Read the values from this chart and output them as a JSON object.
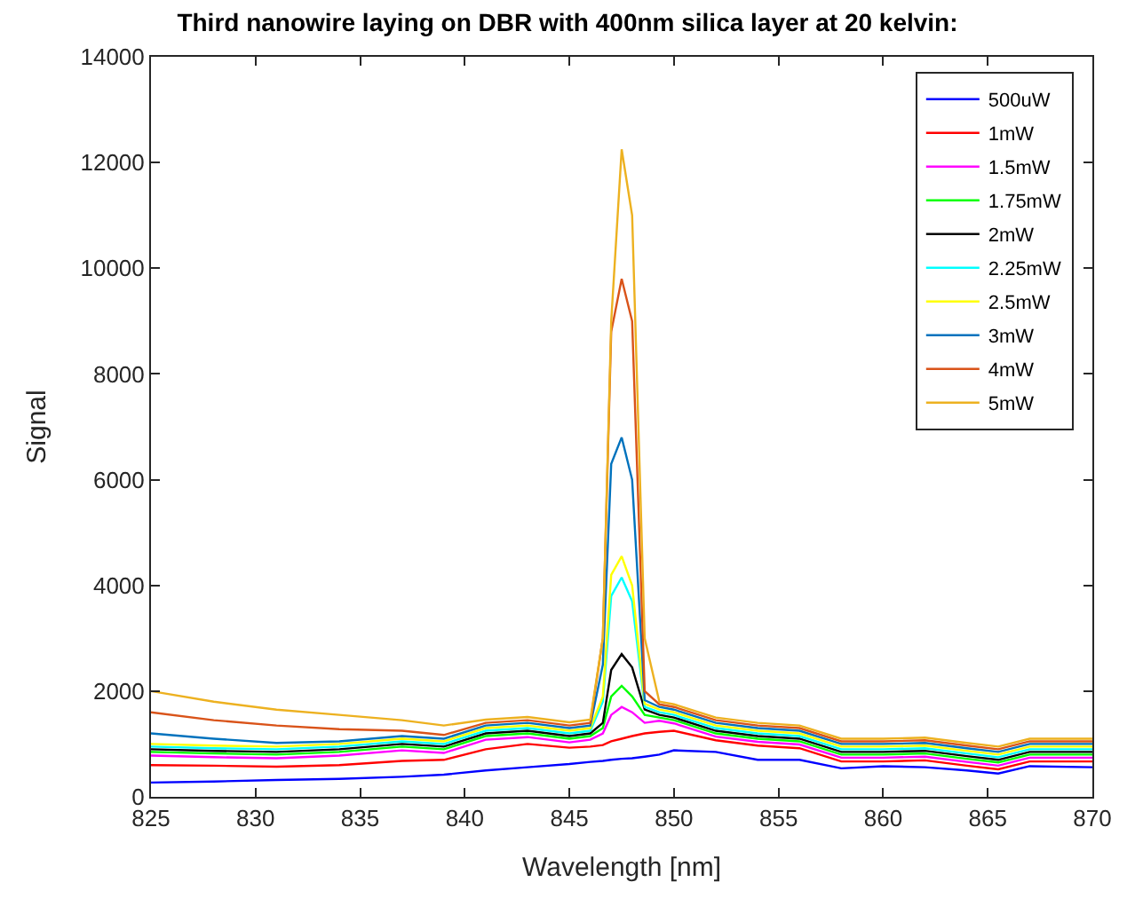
{
  "chart_data": {
    "type": "line",
    "title": "Third nanowire laying on DBR with 400nm silica layer at 20 kelvin:",
    "xlabel": "Wavelength [nm]",
    "ylabel": "Signal",
    "x": [
      825,
      828,
      831,
      834,
      837,
      839,
      841,
      843,
      845,
      846,
      846.6,
      847,
      847.5,
      848,
      848.6,
      849.3,
      850,
      852,
      854,
      856,
      858,
      860,
      862,
      864,
      865.5,
      867,
      870
    ],
    "series": [
      {
        "name": "500uW",
        "color": "#0000ff",
        "values": [
          270,
          290,
          320,
          340,
          380,
          420,
          500,
          560,
          620,
          660,
          680,
          700,
          720,
          730,
          760,
          800,
          880,
          850,
          700,
          700,
          540,
          580,
          560,
          500,
          440,
          580,
          560
        ]
      },
      {
        "name": "1mW",
        "color": "#ff0000",
        "values": [
          600,
          590,
          570,
          600,
          680,
          700,
          900,
          1000,
          930,
          950,
          980,
          1050,
          1100,
          1150,
          1200,
          1230,
          1250,
          1070,
          970,
          920,
          670,
          670,
          690,
          590,
          520,
          670,
          670
        ]
      },
      {
        "name": "1.5mW",
        "color": "#ff00ff",
        "values": [
          780,
          750,
          730,
          780,
          880,
          830,
          1080,
          1130,
          1030,
          1080,
          1200,
          1550,
          1700,
          1600,
          1400,
          1440,
          1390,
          1140,
          1040,
          990,
          740,
          740,
          760,
          660,
          590,
          740,
          740
        ]
      },
      {
        "name": "1.75mW",
        "color": "#00ff00",
        "values": [
          850,
          820,
          800,
          850,
          950,
          900,
          1150,
          1200,
          1100,
          1150,
          1300,
          1900,
          2100,
          1900,
          1550,
          1500,
          1450,
          1200,
          1100,
          1050,
          800,
          800,
          820,
          720,
          650,
          800,
          800
        ]
      },
      {
        "name": "2mW",
        "color": "#000000",
        "values": [
          900,
          870,
          850,
          900,
          1000,
          950,
          1200,
          1250,
          1150,
          1200,
          1400,
          2400,
          2700,
          2450,
          1650,
          1550,
          1500,
          1250,
          1150,
          1100,
          850,
          850,
          870,
          770,
          700,
          850,
          850
        ]
      },
      {
        "name": "2.25mW",
        "color": "#00ffff",
        "values": [
          950,
          920,
          900,
          950,
          1050,
          1000,
          1250,
          1300,
          1200,
          1250,
          1800,
          3800,
          4150,
          3700,
          1700,
          1600,
          1550,
          1300,
          1200,
          1150,
          900,
          900,
          920,
          820,
          750,
          900,
          900
        ]
      },
      {
        "name": "2.5mW",
        "color": "#ffff00",
        "values": [
          1000,
          970,
          950,
          1000,
          1100,
          1050,
          1300,
          1350,
          1250,
          1300,
          1900,
          4200,
          4550,
          4000,
          1760,
          1650,
          1600,
          1350,
          1250,
          1200,
          950,
          950,
          970,
          870,
          800,
          950,
          950
        ]
      },
      {
        "name": "3mW",
        "color": "#0072bd",
        "values": [
          1200,
          1100,
          1020,
          1050,
          1150,
          1100,
          1350,
          1400,
          1300,
          1350,
          2500,
          6300,
          6800,
          6000,
          1830,
          1700,
          1650,
          1400,
          1300,
          1250,
          1000,
          1000,
          1020,
          920,
          850,
          1000,
          1000
        ]
      },
      {
        "name": "4mW",
        "color": "#d95319",
        "values": [
          1600,
          1450,
          1350,
          1280,
          1250,
          1170,
          1400,
          1450,
          1350,
          1400,
          3000,
          8800,
          9800,
          9000,
          2000,
          1750,
          1700,
          1450,
          1350,
          1300,
          1050,
          1050,
          1070,
          970,
          900,
          1050,
          1050
        ]
      },
      {
        "name": "5mW",
        "color": "#edb120",
        "values": [
          2000,
          1800,
          1650,
          1550,
          1450,
          1350,
          1460,
          1510,
          1410,
          1460,
          3000,
          9000,
          12250,
          11000,
          3000,
          1800,
          1750,
          1500,
          1400,
          1350,
          1100,
          1100,
          1120,
          1020,
          950,
          1100,
          1100
        ]
      }
    ],
    "xlim": [
      825,
      870
    ],
    "xticks": [
      825,
      830,
      835,
      840,
      845,
      850,
      855,
      860,
      865,
      870
    ],
    "ylim": [
      0,
      14000
    ],
    "yticks": [
      0,
      2000,
      4000,
      6000,
      8000,
      10000,
      12000,
      14000
    ],
    "legend": "top right",
    "marker": "none",
    "line_style": "solid"
  }
}
